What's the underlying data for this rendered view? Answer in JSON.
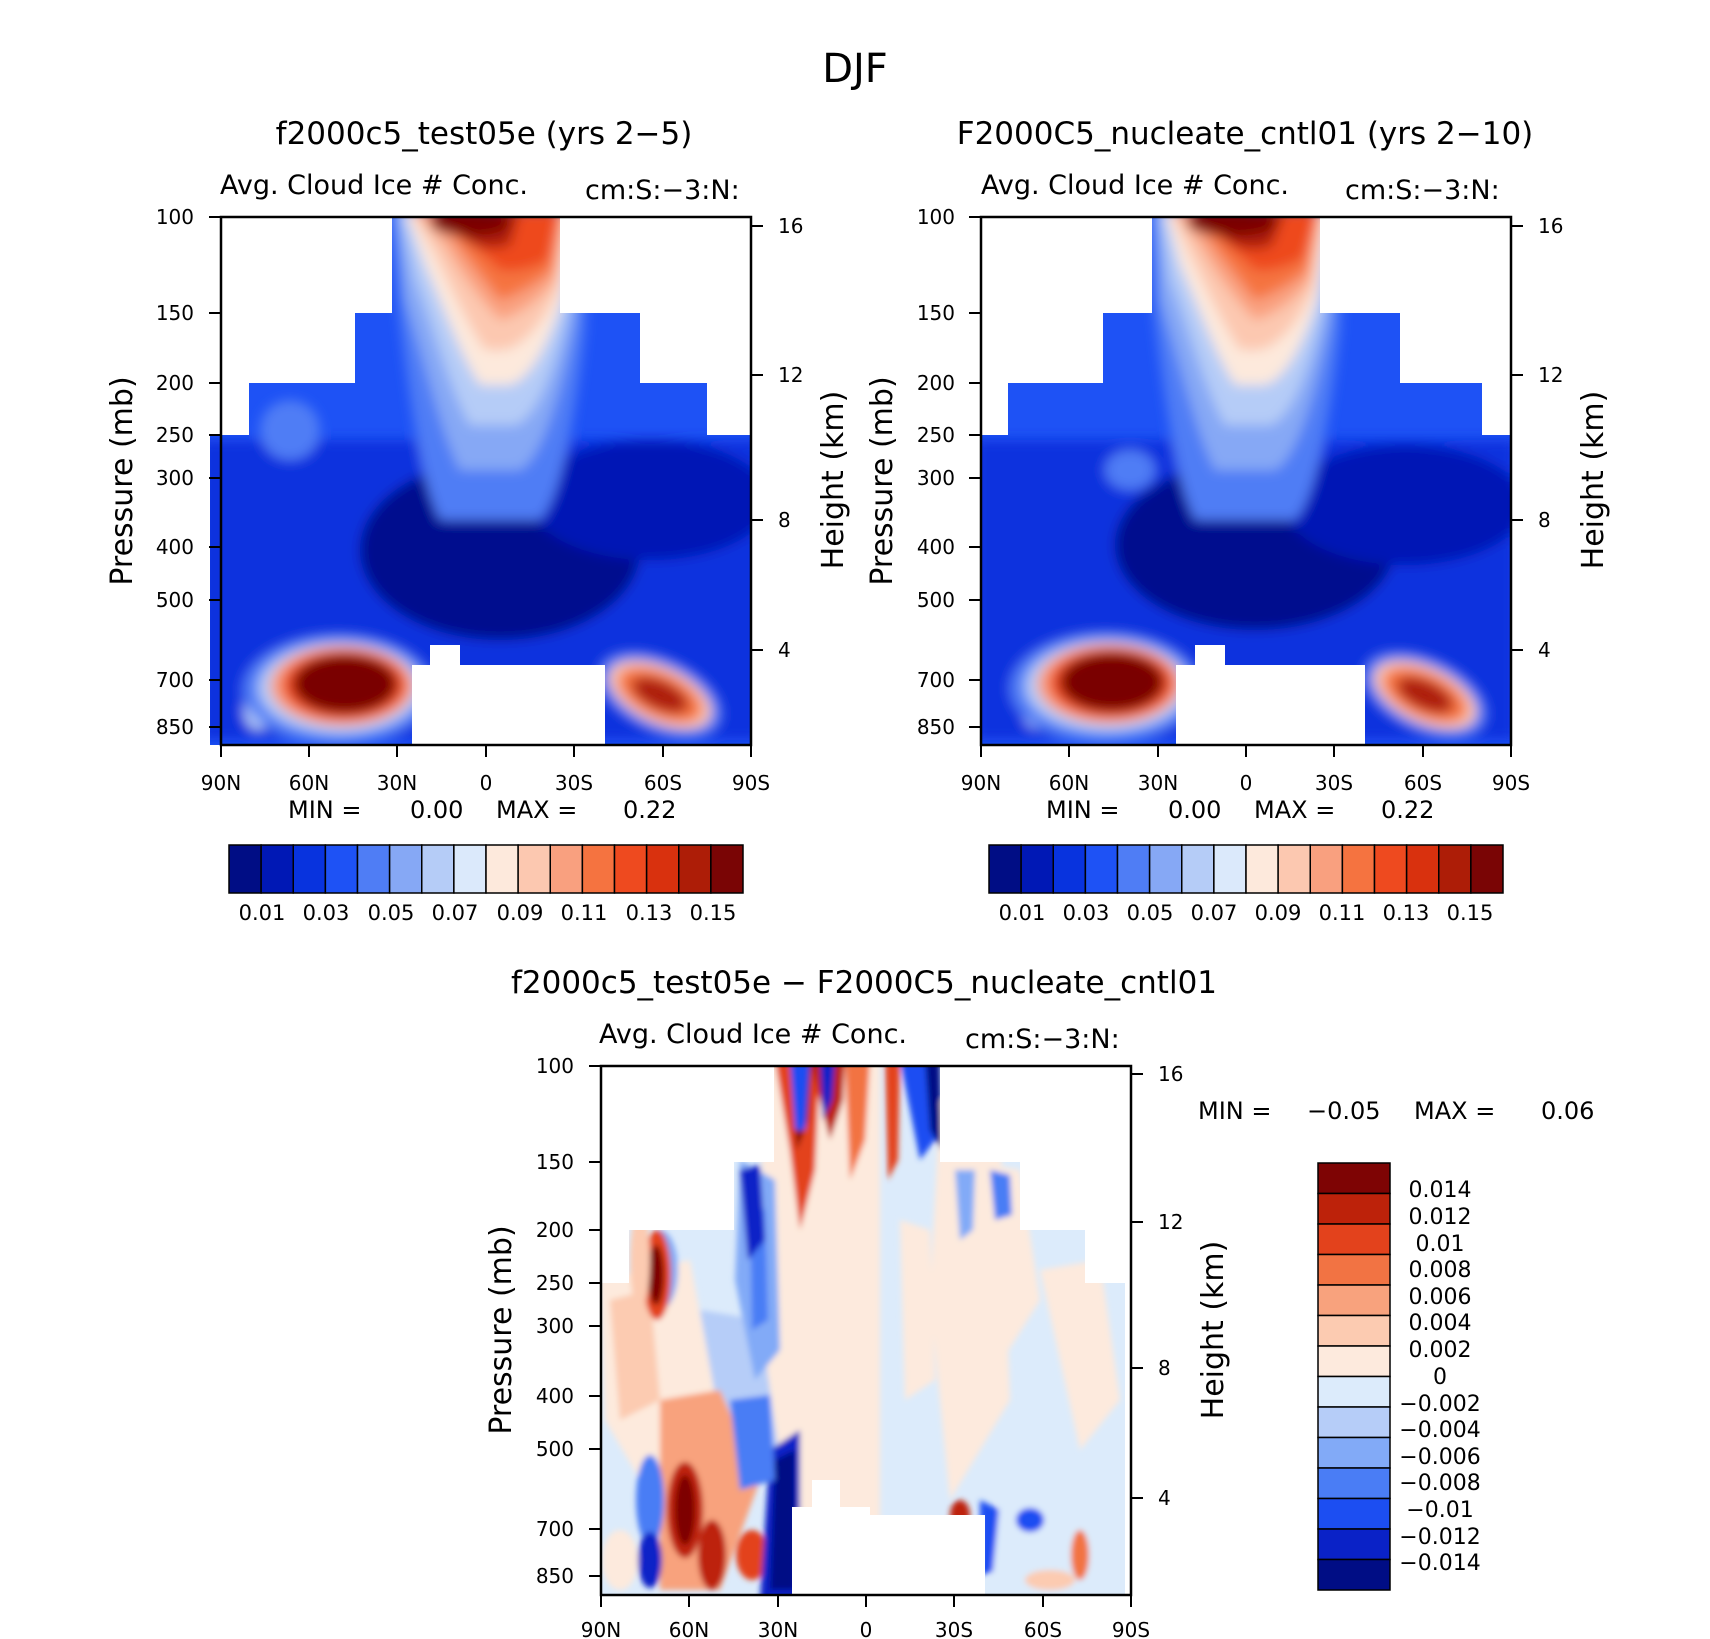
{
  "figure": {
    "title": "DJF"
  },
  "colors": {
    "sequential": [
      "#000d85",
      "#0018b5",
      "#0833de",
      "#1e52f5",
      "#4f7df5",
      "#86a8f5",
      "#b5ccf7",
      "#dbe9fb",
      "#fde9dc",
      "#fcc8b0",
      "#f9a07f",
      "#f57340",
      "#ee4a1f",
      "#d9310e",
      "#ad1d07",
      "#7a0505"
    ],
    "diverging": [
      "#000d85",
      "#0a22c7",
      "#1c4ef2",
      "#4a7df5",
      "#82aaf7",
      "#b6cdf8",
      "#dcebfb",
      "#fdeadd",
      "#fccbb1",
      "#f8a27d",
      "#f27343",
      "#e3421c",
      "#bd220a",
      "#7e0404"
    ]
  },
  "chart_data": [
    {
      "type": "heatmap",
      "title": "f2000c5_test05e (yrs 2-5)",
      "subtitle_left": "Avg. Cloud Ice # Conc.",
      "subtitle_right": "cm:S:-3:N:",
      "ylabel": "Pressure (mb)",
      "y2label": "Height (km)",
      "xticks": [
        "90N",
        "60N",
        "30N",
        "0",
        "30S",
        "60S",
        "90S"
      ],
      "yticks": [
        "100",
        "150",
        "200",
        "250",
        "300",
        "400",
        "500",
        "700",
        "850"
      ],
      "y2ticks": [
        "16",
        "12",
        "8",
        "4"
      ],
      "min_label": "MIN =",
      "min_value": "0.00",
      "max_label": "MAX =",
      "max_value": "0.22",
      "colorbar_labels": [
        "0.01",
        "0.03",
        "0.05",
        "0.07",
        "0.09",
        "0.11",
        "0.13",
        "0.15"
      ]
    },
    {
      "type": "heatmap",
      "title": "F2000C5_nucleate_cntl01 (yrs 2-10)",
      "subtitle_left": "Avg. Cloud Ice # Conc.",
      "subtitle_right": "cm:S:-3:N:",
      "ylabel": "Pressure (mb)",
      "y2label": "Height (km)",
      "xticks": [
        "90N",
        "60N",
        "30N",
        "0",
        "30S",
        "60S",
        "90S"
      ],
      "yticks": [
        "100",
        "150",
        "200",
        "250",
        "300",
        "400",
        "500",
        "700",
        "850"
      ],
      "y2ticks": [
        "16",
        "12",
        "8",
        "4"
      ],
      "min_label": "MIN =",
      "min_value": "0.00",
      "max_label": "MAX =",
      "max_value": "0.22",
      "colorbar_labels": [
        "0.01",
        "0.03",
        "0.05",
        "0.07",
        "0.09",
        "0.11",
        "0.13",
        "0.15"
      ]
    },
    {
      "type": "heatmap",
      "title": "f2000c5_test05e - F2000C5_nucleate_cntl01",
      "subtitle_left": "Avg. Cloud Ice # Conc.",
      "subtitle_right": "cm:S:-3:N:",
      "ylabel": "Pressure (mb)",
      "y2label": "Height (km)",
      "xticks": [
        "90N",
        "60N",
        "30N",
        "0",
        "30S",
        "60S",
        "90S"
      ],
      "yticks": [
        "100",
        "150",
        "200",
        "250",
        "300",
        "400",
        "500",
        "700",
        "850"
      ],
      "y2ticks": [
        "16",
        "12",
        "8",
        "4"
      ],
      "min_label": "MIN =",
      "min_value": "-0.05",
      "max_label": "MAX =",
      "max_value": "0.06",
      "colorbar_labels": [
        "0.014",
        "0.012",
        "0.01",
        "0.008",
        "0.006",
        "0.004",
        "0.002",
        "0",
        "-0.002",
        "-0.004",
        "-0.006",
        "-0.008",
        "-0.01",
        "-0.012",
        "-0.014"
      ]
    }
  ]
}
